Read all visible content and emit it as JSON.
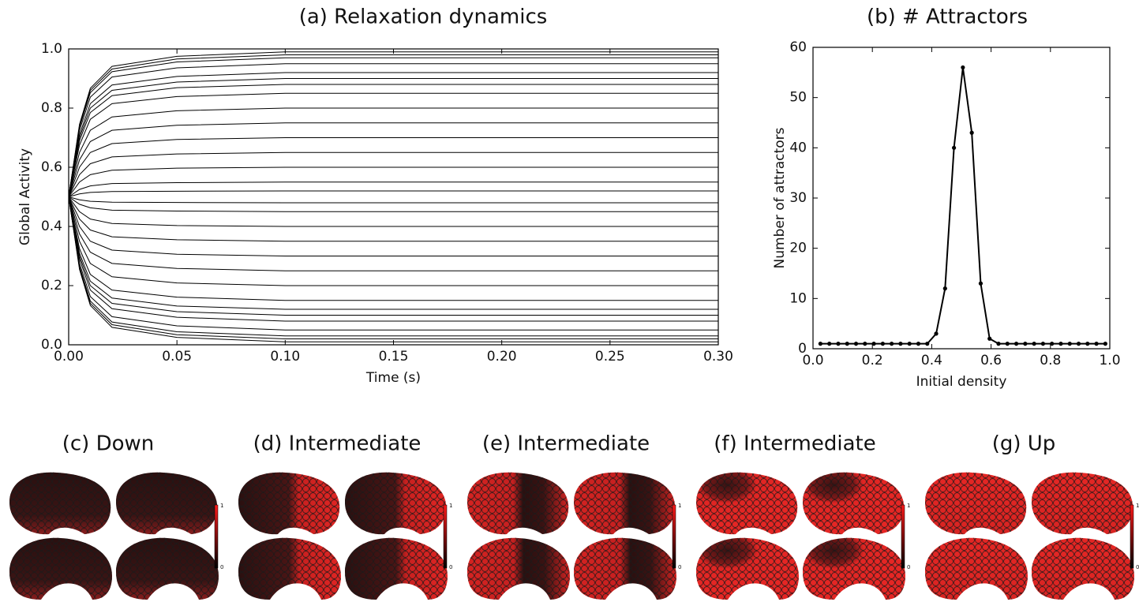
{
  "chart_data": [
    {
      "type": "line",
      "title": "(a) Relaxation dynamics",
      "x_label": "Time (s)",
      "y_label": "Global Activity",
      "color": "#000000",
      "x": [
        0,
        0.005,
        0.01,
        0.02,
        0.05,
        0.1,
        0.3
      ],
      "xlim": [
        0,
        0.3
      ],
      "ylim": [
        0,
        1
      ],
      "xticks": [
        {
          "value": 0,
          "label": "0.00"
        },
        {
          "value": 0.05,
          "label": "0.05"
        },
        {
          "value": 0.1,
          "label": "0.10"
        },
        {
          "value": 0.15,
          "label": "0.15"
        },
        {
          "value": 0.2,
          "label": "0.20"
        },
        {
          "value": 0.25,
          "label": "0.25"
        },
        {
          "value": 0.3,
          "label": "0.30"
        }
      ],
      "yticks": [
        {
          "value": 0,
          "label": "0.0"
        },
        {
          "value": 0.2,
          "label": "0.2"
        },
        {
          "value": 0.4,
          "label": "0.4"
        },
        {
          "value": 0.6,
          "label": "0.6"
        },
        {
          "value": 0.8,
          "label": "0.8"
        },
        {
          "value": 1,
          "label": "1.0"
        }
      ],
      "series": [
        {
          "values": [
            0.5,
            0.255,
            0.133,
            0.059,
            0.025,
            0.01,
            0.01
          ]
        },
        {
          "values": [
            0.5,
            0.26,
            0.14,
            0.068,
            0.034,
            0.02,
            0.02
          ]
        },
        {
          "values": [
            0.5,
            0.265,
            0.148,
            0.077,
            0.044,
            0.03,
            0.03
          ]
        },
        {
          "values": [
            0.5,
            0.275,
            0.163,
            0.095,
            0.064,
            0.05,
            0.05
          ]
        },
        {
          "values": [
            0.5,
            0.29,
            0.185,
            0.122,
            0.093,
            0.08,
            0.08
          ]
        },
        {
          "values": [
            0.5,
            0.3,
            0.2,
            0.14,
            0.112,
            0.1,
            0.1
          ]
        },
        {
          "values": [
            0.5,
            0.31,
            0.215,
            0.158,
            0.131,
            0.12,
            0.12
          ]
        },
        {
          "values": [
            0.5,
            0.325,
            0.238,
            0.185,
            0.161,
            0.15,
            0.15
          ]
        },
        {
          "values": [
            0.5,
            0.35,
            0.275,
            0.23,
            0.209,
            0.2,
            0.2
          ]
        },
        {
          "values": [
            0.5,
            0.375,
            0.313,
            0.275,
            0.258,
            0.25,
            0.25
          ]
        },
        {
          "values": [
            0.5,
            0.4,
            0.35,
            0.32,
            0.306,
            0.3,
            0.3
          ]
        },
        {
          "values": [
            0.5,
            0.425,
            0.388,
            0.365,
            0.355,
            0.35,
            0.35
          ]
        },
        {
          "values": [
            0.5,
            0.45,
            0.425,
            0.41,
            0.403,
            0.4,
            0.4
          ]
        },
        {
          "values": [
            0.5,
            0.475,
            0.463,
            0.455,
            0.452,
            0.45,
            0.45
          ]
        },
        {
          "values": [
            0.5,
            0.49,
            0.485,
            0.482,
            0.481,
            0.48,
            0.48
          ]
        },
        {
          "values": [
            0.5,
            0.51,
            0.515,
            0.518,
            0.519,
            0.52,
            0.52
          ]
        },
        {
          "values": [
            0.5,
            0.525,
            0.537,
            0.545,
            0.548,
            0.55,
            0.55
          ]
        },
        {
          "values": [
            0.5,
            0.55,
            0.575,
            0.59,
            0.597,
            0.6,
            0.6
          ]
        },
        {
          "values": [
            0.5,
            0.575,
            0.612,
            0.635,
            0.645,
            0.65,
            0.65
          ]
        },
        {
          "values": [
            0.5,
            0.6,
            0.65,
            0.68,
            0.694,
            0.7,
            0.7
          ]
        },
        {
          "values": [
            0.5,
            0.625,
            0.687,
            0.725,
            0.742,
            0.75,
            0.75
          ]
        },
        {
          "values": [
            0.5,
            0.65,
            0.725,
            0.77,
            0.791,
            0.8,
            0.8
          ]
        },
        {
          "values": [
            0.5,
            0.675,
            0.762,
            0.815,
            0.839,
            0.85,
            0.85
          ]
        },
        {
          "values": [
            0.5,
            0.69,
            0.785,
            0.842,
            0.869,
            0.88,
            0.88
          ]
        },
        {
          "values": [
            0.5,
            0.7,
            0.8,
            0.86,
            0.888,
            0.9,
            0.9
          ]
        },
        {
          "values": [
            0.5,
            0.71,
            0.815,
            0.878,
            0.907,
            0.92,
            0.92
          ]
        },
        {
          "values": [
            0.5,
            0.725,
            0.837,
            0.905,
            0.936,
            0.95,
            0.95
          ]
        },
        {
          "values": [
            0.5,
            0.735,
            0.852,
            0.923,
            0.956,
            0.97,
            0.97
          ]
        },
        {
          "values": [
            0.5,
            0.74,
            0.86,
            0.932,
            0.966,
            0.98,
            0.98
          ]
        },
        {
          "values": [
            0.5,
            0.745,
            0.867,
            0.941,
            0.975,
            0.99,
            0.99
          ]
        }
      ]
    },
    {
      "type": "line",
      "title": "(b) # Attractors",
      "x_label": "Initial density",
      "y_label": "Number of attractors",
      "color": "#000000",
      "markers": true,
      "x": [
        0.025,
        0.055,
        0.085,
        0.115,
        0.145,
        0.175,
        0.205,
        0.235,
        0.265,
        0.295,
        0.325,
        0.355,
        0.385,
        0.415,
        0.445,
        0.475,
        0.505,
        0.535,
        0.565,
        0.595,
        0.625,
        0.655,
        0.685,
        0.715,
        0.745,
        0.775,
        0.805,
        0.835,
        0.865,
        0.895,
        0.925,
        0.955,
        0.985
      ],
      "xlim": [
        0,
        1
      ],
      "ylim": [
        0,
        60
      ],
      "xticks": [
        {
          "value": 0,
          "label": "0.0"
        },
        {
          "value": 0.2,
          "label": "0.2"
        },
        {
          "value": 0.4,
          "label": "0.4"
        },
        {
          "value": 0.6,
          "label": "0.6"
        },
        {
          "value": 0.8,
          "label": "0.8"
        },
        {
          "value": 1,
          "label": "1.0"
        }
      ],
      "yticks": [
        0,
        10,
        20,
        30,
        40,
        50,
        60
      ],
      "series": [
        {
          "values": [
            1,
            1,
            1,
            1,
            1,
            1,
            1,
            1,
            1,
            1,
            1,
            1,
            1,
            3,
            12,
            40,
            56,
            43,
            13,
            2,
            1,
            1,
            1,
            1,
            1,
            1,
            1,
            1,
            1,
            1,
            1,
            1,
            1
          ]
        }
      ]
    }
  ],
  "panels": [
    {
      "title": "(c) Down",
      "colorbar_max": 1,
      "colorbar_min": 0
    },
    {
      "title": "(d) Intermediate",
      "colorbar_max": 1,
      "colorbar_min": 0
    },
    {
      "title": "(e) Intermediate",
      "colorbar_max": 1,
      "colorbar_min": 0
    },
    {
      "title": "(f) Intermediate",
      "colorbar_max": 1,
      "colorbar_min": 0
    },
    {
      "title": "(g) Up",
      "colorbar_max": 1,
      "colorbar_min": 0
    }
  ]
}
